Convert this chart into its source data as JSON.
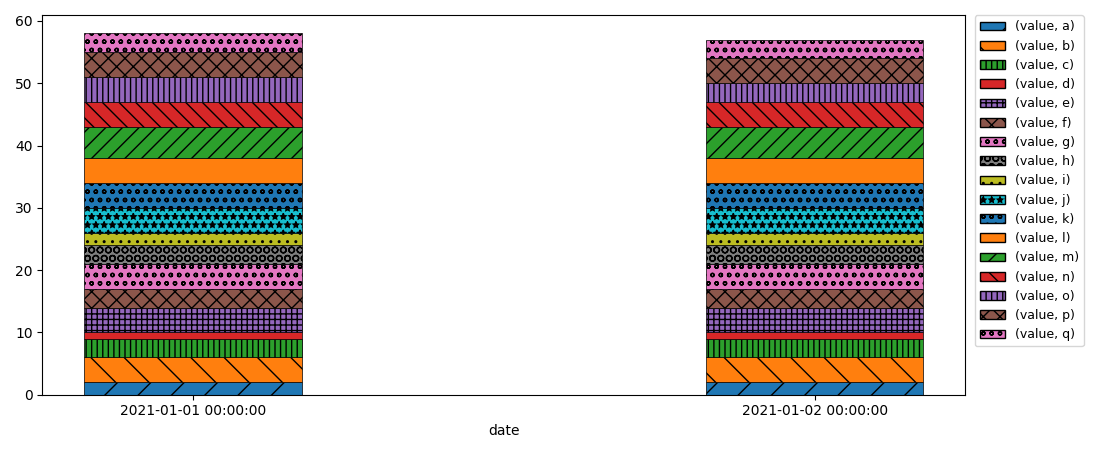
{
  "dates": [
    "2021-01-01 00:00:00",
    "2021-01-02 00:00:00"
  ],
  "series": [
    {
      "label": "(value, a)",
      "color": "#1f77b4",
      "hatch": "/",
      "values": [
        2,
        2
      ]
    },
    {
      "label": "(value, b)",
      "color": "#ff7f0e",
      "hatch": "\\",
      "values": [
        4,
        4
      ]
    },
    {
      "label": "(value, c)",
      "color": "#2ca02c",
      "hatch": "|||",
      "values": [
        3,
        3
      ]
    },
    {
      "label": "(value, d)",
      "color": "#d62728",
      "hatch": "",
      "values": [
        1,
        1
      ]
    },
    {
      "label": "(value, e)",
      "color": "#9467bd",
      "hatch": "+++",
      "values": [
        4,
        4
      ]
    },
    {
      "label": "(value, f)",
      "color": "#8c564b",
      "hatch": "xx",
      "values": [
        3,
        3
      ]
    },
    {
      "label": "(value, g)",
      "color": "#e377c2",
      "hatch": "oo",
      "values": [
        4,
        4
      ]
    },
    {
      "label": "(value, h)",
      "color": "#7f7f7f",
      "hatch": "OO",
      "values": [
        3,
        3
      ]
    },
    {
      "label": "(value, i)",
      "color": "#bcbd22",
      "hatch": "..",
      "values": [
        2,
        2
      ]
    },
    {
      "label": "(value, j)",
      "color": "#17becf",
      "hatch": "**",
      "values": [
        4,
        4
      ]
    },
    {
      "label": "(value, k)",
      "color": "#1f77b4",
      "hatch": "oo",
      "values": [
        4,
        4
      ]
    },
    {
      "label": "(value, l)",
      "color": "#ff7f0e",
      "hatch": "NN",
      "values": [
        4,
        4
      ]
    },
    {
      "label": "(value, m)",
      "color": "#2ca02c",
      "hatch": "//",
      "values": [
        5,
        5
      ]
    },
    {
      "label": "(value, n)",
      "color": "#d62728",
      "hatch": "\\\\",
      "values": [
        4,
        4
      ]
    },
    {
      "label": "(value, o)",
      "color": "#9467bd",
      "hatch": "|||",
      "values": [
        4,
        3
      ]
    },
    {
      "label": "(value, p)",
      "color": "#8c564b",
      "hatch": "xx",
      "values": [
        4,
        4
      ]
    },
    {
      "label": "(value, q)",
      "color": "#e377c2",
      "hatch": "oo",
      "values": [
        3,
        3
      ]
    }
  ],
  "xlabel": "date",
  "ylabel": "",
  "bar_width": 0.35,
  "figsize": [
    10.98,
    4.53
  ],
  "dpi": 100
}
